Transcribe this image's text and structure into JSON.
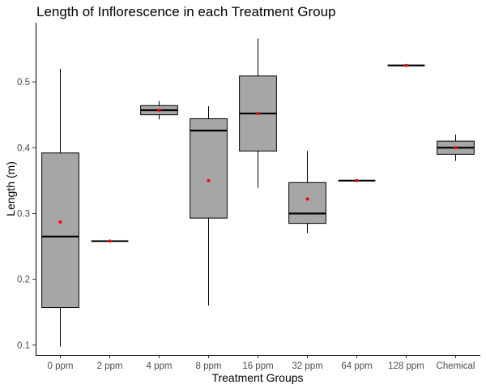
{
  "chart_data": {
    "type": "boxplot",
    "title": "Length of Inflorescence in each Treatment Group",
    "xlabel": "Treatment Groups",
    "ylabel": "Length (m)",
    "ylim": [
      0.085,
      0.59
    ],
    "yticks": [
      0.1,
      0.2,
      0.3,
      0.4,
      0.5
    ],
    "ytick_labels": [
      "0.1",
      "0.2",
      "0.3",
      "0.4",
      "0.5"
    ],
    "grid": false,
    "box_color": "#a6a6a6",
    "mean_color": "#ff0000",
    "categories": [
      "0 ppm",
      "2 ppm",
      "4 ppm",
      "8 ppm",
      "16 ppm",
      "32 ppm",
      "64 ppm",
      "128 ppm",
      "Chemical"
    ],
    "boxes": [
      {
        "min": 0.098,
        "q1": 0.157,
        "median": 0.265,
        "q3": 0.392,
        "max": 0.52,
        "mean": 0.287
      },
      {
        "min": 0.258,
        "q1": 0.258,
        "median": 0.258,
        "q3": 0.258,
        "max": 0.258,
        "mean": 0.258
      },
      {
        "min": 0.443,
        "q1": 0.45,
        "median": 0.457,
        "q3": 0.464,
        "max": 0.471,
        "mean": 0.457
      },
      {
        "min": 0.16,
        "q1": 0.293,
        "median": 0.426,
        "q3": 0.444,
        "max": 0.463,
        "mean": 0.35
      },
      {
        "min": 0.339,
        "q1": 0.395,
        "median": 0.452,
        "q3": 0.509,
        "max": 0.566,
        "mean": 0.452
      },
      {
        "min": 0.27,
        "q1": 0.285,
        "median": 0.3,
        "q3": 0.347,
        "max": 0.395,
        "mean": 0.322
      },
      {
        "min": 0.35,
        "q1": 0.35,
        "median": 0.35,
        "q3": 0.35,
        "max": 0.35,
        "mean": 0.35
      },
      {
        "min": 0.525,
        "q1": 0.525,
        "median": 0.525,
        "q3": 0.525,
        "max": 0.525,
        "mean": 0.525
      },
      {
        "min": 0.38,
        "q1": 0.39,
        "median": 0.4,
        "q3": 0.41,
        "max": 0.42,
        "mean": 0.4
      }
    ]
  }
}
